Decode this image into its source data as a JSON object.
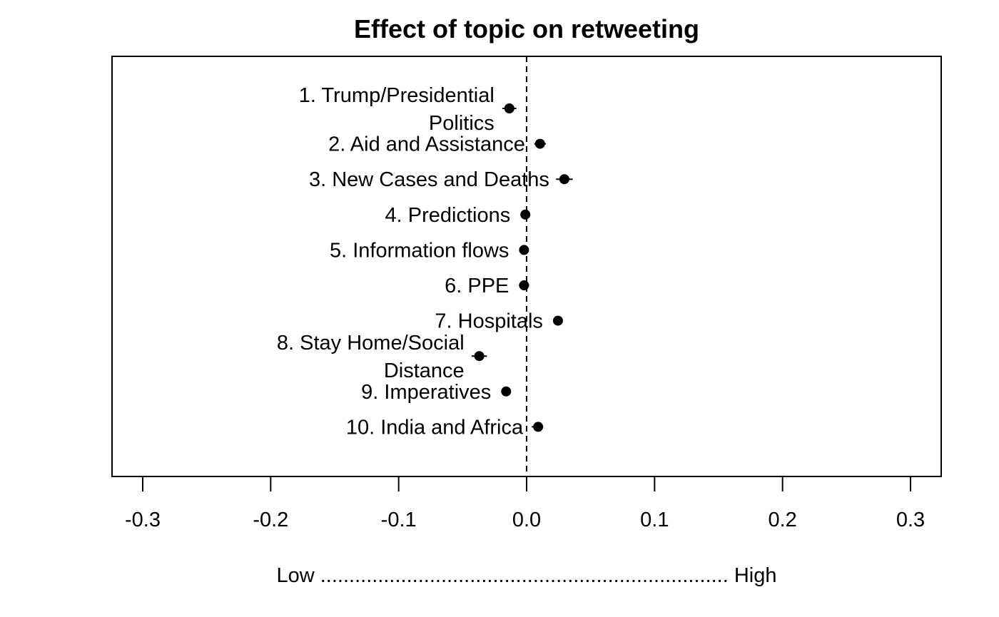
{
  "chart_data": {
    "type": "scatter",
    "title": "Effect of topic on retweeting",
    "xlabel": "Low ....................................................................... High",
    "ylabel": "",
    "xlim": [
      -0.325,
      0.325
    ],
    "xticks": [
      -0.3,
      -0.2,
      -0.1,
      0.0,
      0.1,
      0.2,
      0.3
    ],
    "xtick_labels": [
      "-0.3",
      "-0.2",
      "-0.1",
      "0.0",
      "0.1",
      "0.2",
      "0.3"
    ],
    "reference_line": 0.0,
    "reference_line_style": "dashed",
    "grid": false,
    "legend": "none",
    "point_color": "#000000",
    "points": [
      {
        "label_lines": [
          "1. Trump/Presidential",
          "Politics"
        ],
        "estimate": -0.0135,
        "ci": [
          -0.019,
          -0.008
        ]
      },
      {
        "label_lines": [
          "2. Aid and Assistance"
        ],
        "estimate": 0.0105,
        "ci": [
          0.006,
          0.015
        ]
      },
      {
        "label_lines": [
          "3. New Cases and Deaths"
        ],
        "estimate": 0.0295,
        "ci": [
          0.023,
          0.036
        ]
      },
      {
        "label_lines": [
          "4. Predictions"
        ],
        "estimate": -0.001,
        "ci": [
          -0.003,
          0.001
        ]
      },
      {
        "label_lines": [
          "5. Information flows"
        ],
        "estimate": -0.002,
        "ci": [
          -0.004,
          0.0
        ]
      },
      {
        "label_lines": [
          "6. PPE"
        ],
        "estimate": -0.002,
        "ci": [
          -0.006,
          0.002
        ]
      },
      {
        "label_lines": [
          "7. Hospitals"
        ],
        "estimate": 0.0245,
        "ci": [
          0.021,
          0.028
        ]
      },
      {
        "label_lines": [
          "8. Stay Home/Social",
          "Distance"
        ],
        "estimate": -0.037,
        "ci": [
          -0.043,
          -0.031
        ]
      },
      {
        "label_lines": [
          "9. Imperatives"
        ],
        "estimate": -0.016,
        "ci": [
          -0.019,
          -0.013
        ]
      },
      {
        "label_lines": [
          "10. India and Africa"
        ],
        "estimate": 0.009,
        "ci": [
          0.004,
          0.013
        ]
      }
    ]
  }
}
